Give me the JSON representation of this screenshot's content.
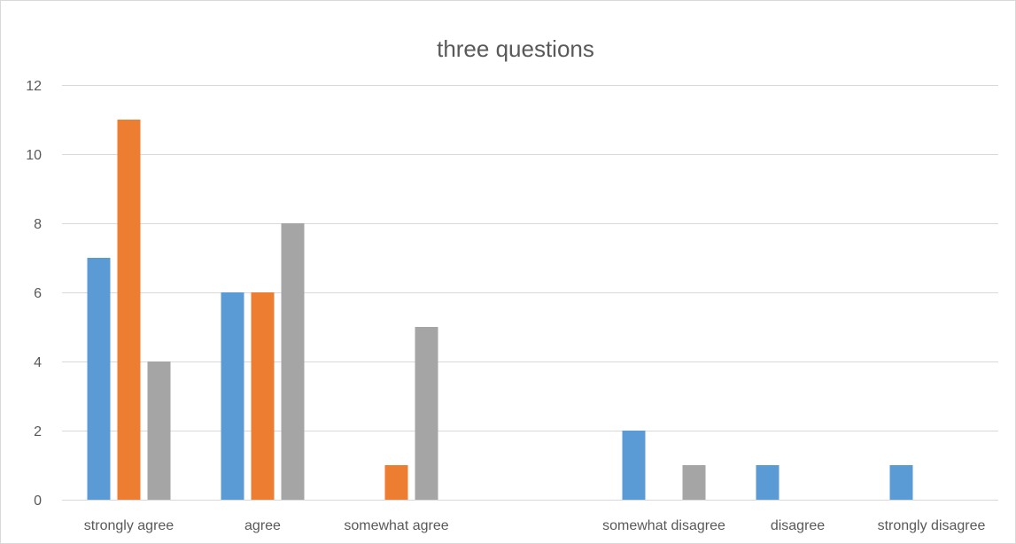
{
  "chart_data": {
    "type": "bar",
    "title": "three questions",
    "categories": [
      "strongly agree",
      "agree",
      "somewhat agree",
      "",
      "somewhat disagree",
      "disagree",
      "strongly disagree"
    ],
    "series": [
      {
        "color": "#5b9bd5",
        "values": [
          7,
          6,
          0,
          0,
          2,
          1,
          1
        ]
      },
      {
        "color": "#ed7d31",
        "values": [
          11,
          6,
          1,
          0,
          0,
          0,
          0
        ]
      },
      {
        "color": "#a5a5a5",
        "values": [
          4,
          8,
          5,
          0,
          1,
          0,
          0
        ]
      }
    ],
    "ylim": [
      0,
      12
    ],
    "yticks": [
      0,
      2,
      4,
      6,
      8,
      10,
      12
    ],
    "grid": true,
    "legend": "none"
  }
}
